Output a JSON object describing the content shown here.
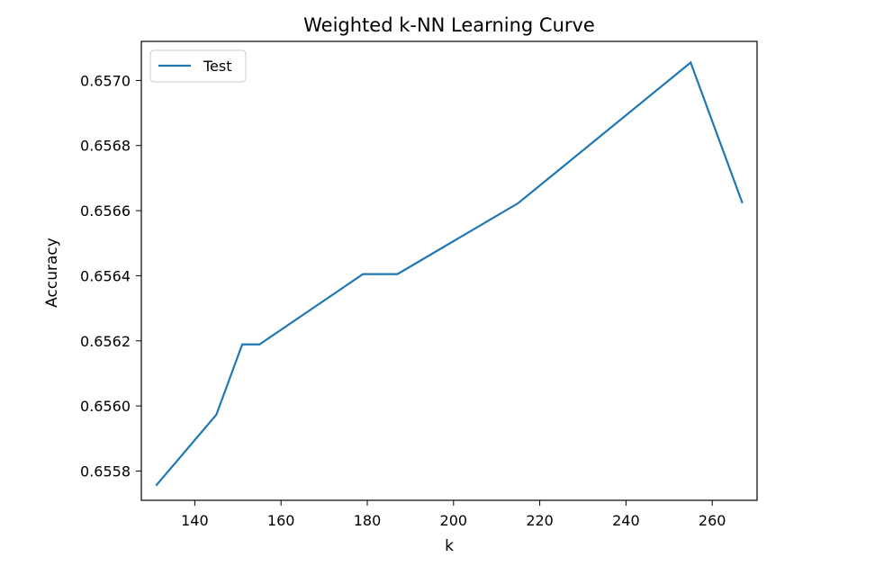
{
  "chart_data": {
    "type": "line",
    "title": "Weighted k-NN Learning Curve",
    "xlabel": "k",
    "ylabel": "Accuracy",
    "xlim": [
      127.6,
      270.4
    ],
    "ylim": [
      0.65571,
      0.65712
    ],
    "xticks": [
      140,
      160,
      180,
      200,
      220,
      240,
      260
    ],
    "yticks": [
      0.6558,
      0.656,
      0.6562,
      0.6564,
      0.6566,
      0.6568,
      0.657
    ],
    "xtick_labels": [
      "140",
      "160",
      "180",
      "200",
      "220",
      "240",
      "260"
    ],
    "ytick_labels": [
      "0.6558",
      "0.6560",
      "0.6562",
      "0.6564",
      "0.6566",
      "0.6568",
      "0.6570"
    ],
    "grid": false,
    "legend": {
      "position": "top-left",
      "entries": [
        "Test"
      ]
    },
    "series": [
      {
        "name": "Test",
        "color": "#1f77b4",
        "x": [
          131,
          145,
          151,
          155,
          179,
          187,
          215,
          255,
          267
        ],
        "y": [
          0.655755,
          0.655973,
          0.656189,
          0.656189,
          0.656405,
          0.656405,
          0.656623,
          0.657055,
          0.656623
        ]
      }
    ]
  }
}
